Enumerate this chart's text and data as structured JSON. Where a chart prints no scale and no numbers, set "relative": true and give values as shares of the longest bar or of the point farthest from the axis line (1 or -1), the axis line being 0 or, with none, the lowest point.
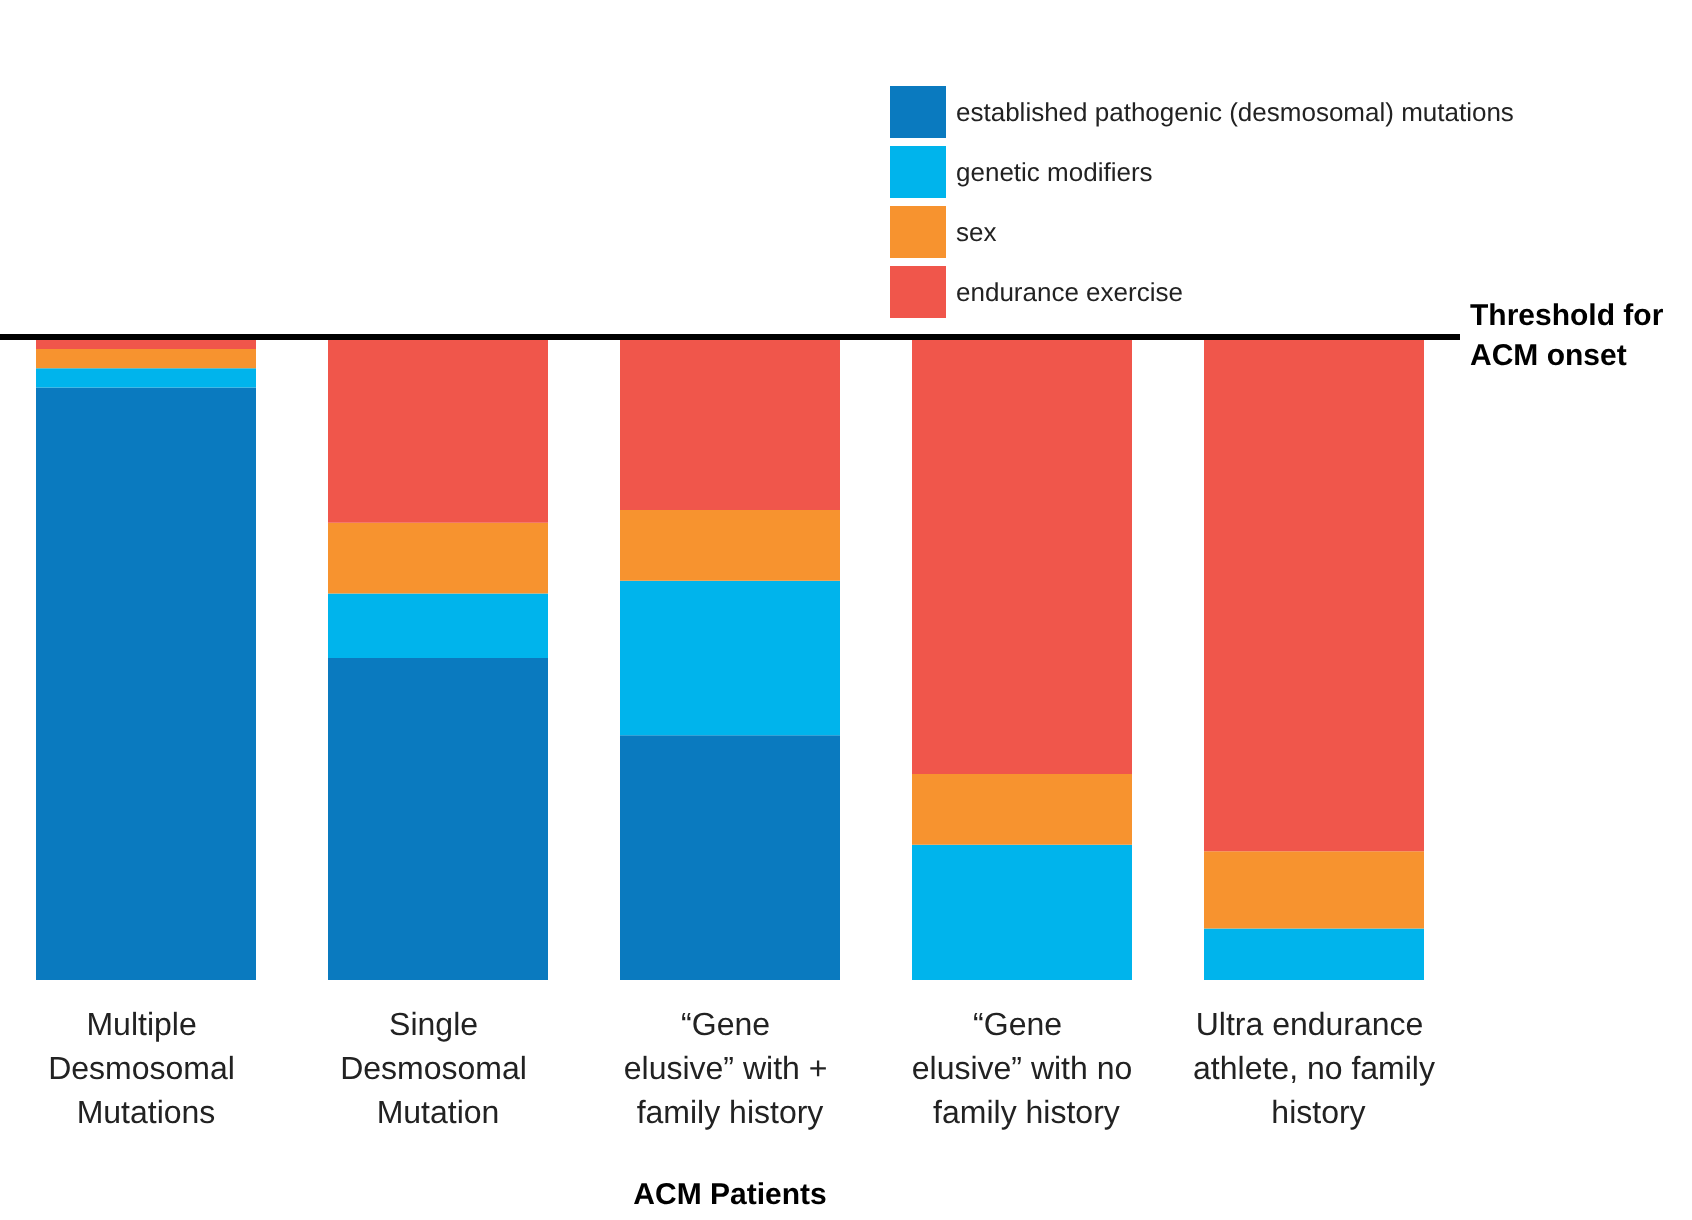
{
  "chart_data": {
    "type": "bar",
    "relative": true,
    "stacked": true,
    "xlabel": "ACM Patients",
    "legend": "top right",
    "categories": [
      "Multiple Desmosomal Mutations",
      "Single Desmosomal Mutation",
      "“Gene elusive” with + family history",
      "“Gene elusive” with no family history",
      "Ultra endurance athlete, no family history"
    ],
    "series": [
      {
        "name": "established pathogenic (desmosomal) mutations",
        "color": "#0a7abf",
        "values": [
          0.92,
          0.5,
          0.38,
          0,
          0
        ]
      },
      {
        "name": "genetic modifiers",
        "color": "#00b4ec",
        "values": [
          0.03,
          0.1,
          0.24,
          0.21,
          0.08
        ]
      },
      {
        "name": "sex",
        "color": "#f7932f",
        "values": [
          0.03,
          0.11,
          0.11,
          0.11,
          0.12
        ]
      },
      {
        "name": "endurance exercise",
        "color": "#f0564b",
        "values": [
          0.02,
          0.29,
          0.27,
          0.68,
          0.8
        ]
      }
    ],
    "ref_lines": [
      {
        "axis": "y",
        "value": 1,
        "label": "Threshold for\nACM onset",
        "color": "#000000"
      }
    ]
  }
}
